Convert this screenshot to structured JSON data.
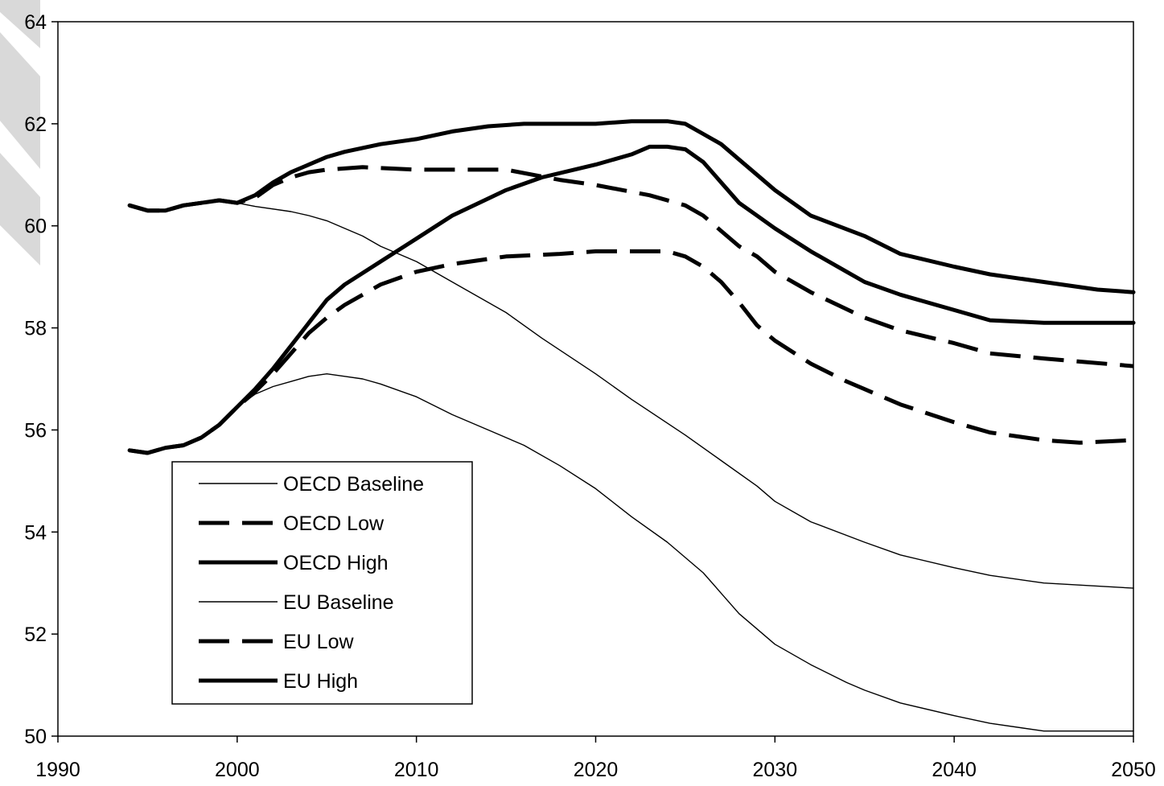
{
  "chart_data": {
    "type": "line",
    "title": "",
    "xlabel": "",
    "ylabel": "",
    "xlim": [
      1990,
      2050
    ],
    "ylim": [
      50,
      64
    ],
    "x_ticks": [
      "1990",
      "2000",
      "2010",
      "2020",
      "2030",
      "2040",
      "2050"
    ],
    "y_ticks": [
      "50",
      "52",
      "54",
      "56",
      "58",
      "60",
      "62",
      "64"
    ],
    "grid": false,
    "legend_position": "bottom-left",
    "series": [
      {
        "name": "OECD Baseline",
        "style": "thin",
        "points": [
          [
            1994,
            60.4
          ],
          [
            1995,
            60.3
          ],
          [
            1996,
            60.3
          ],
          [
            1997,
            60.4
          ],
          [
            1998,
            60.45
          ],
          [
            1999,
            60.5
          ],
          [
            2000,
            60.45
          ],
          [
            2001,
            60.38
          ],
          [
            2003,
            60.28
          ],
          [
            2004,
            60.2
          ],
          [
            2005,
            60.1
          ],
          [
            2006,
            59.95
          ],
          [
            2007,
            59.8
          ],
          [
            2008,
            59.6
          ],
          [
            2010,
            59.3
          ],
          [
            2012,
            58.9
          ],
          [
            2015,
            58.3
          ],
          [
            2017,
            57.8
          ],
          [
            2020,
            57.1
          ],
          [
            2022,
            56.6
          ],
          [
            2025,
            55.9
          ],
          [
            2027,
            55.4
          ],
          [
            2029,
            54.9
          ],
          [
            2030,
            54.6
          ],
          [
            2032,
            54.2
          ],
          [
            2035,
            53.8
          ],
          [
            2037,
            53.55
          ],
          [
            2040,
            53.3
          ],
          [
            2042,
            53.15
          ],
          [
            2045,
            53.0
          ],
          [
            2050,
            52.9
          ]
        ]
      },
      {
        "name": "OECD Low",
        "style": "dash",
        "points": [
          [
            1994,
            60.4
          ],
          [
            1995,
            60.3
          ],
          [
            1996,
            60.3
          ],
          [
            1997,
            60.4
          ],
          [
            1998,
            60.45
          ],
          [
            1999,
            60.5
          ],
          [
            2000,
            60.45
          ],
          [
            2001,
            60.55
          ],
          [
            2002,
            60.8
          ],
          [
            2003,
            60.95
          ],
          [
            2004,
            61.05
          ],
          [
            2005,
            61.1
          ],
          [
            2007,
            61.15
          ],
          [
            2010,
            61.1
          ],
          [
            2013,
            61.1
          ],
          [
            2015,
            61.1
          ],
          [
            2018,
            60.9
          ],
          [
            2020,
            60.8
          ],
          [
            2023,
            60.6
          ],
          [
            2025,
            60.4
          ],
          [
            2026,
            60.2
          ],
          [
            2027,
            59.9
          ],
          [
            2028,
            59.6
          ],
          [
            2029,
            59.4
          ],
          [
            2030,
            59.1
          ],
          [
            2032,
            58.7
          ],
          [
            2035,
            58.2
          ],
          [
            2037,
            57.95
          ],
          [
            2040,
            57.7
          ],
          [
            2042,
            57.5
          ],
          [
            2045,
            57.4
          ],
          [
            2050,
            57.25
          ]
        ]
      },
      {
        "name": "OECD High",
        "style": "thick",
        "points": [
          [
            1994,
            60.4
          ],
          [
            1995,
            60.3
          ],
          [
            1996,
            60.3
          ],
          [
            1997,
            60.4
          ],
          [
            1998,
            60.45
          ],
          [
            1999,
            60.5
          ],
          [
            2000,
            60.45
          ],
          [
            2001,
            60.6
          ],
          [
            2002,
            60.85
          ],
          [
            2003,
            61.05
          ],
          [
            2004,
            61.2
          ],
          [
            2005,
            61.35
          ],
          [
            2006,
            61.45
          ],
          [
            2008,
            61.6
          ],
          [
            2010,
            61.7
          ],
          [
            2012,
            61.85
          ],
          [
            2014,
            61.95
          ],
          [
            2016,
            62.0
          ],
          [
            2020,
            62.0
          ],
          [
            2022,
            62.05
          ],
          [
            2024,
            62.05
          ],
          [
            2025,
            62.0
          ],
          [
            2026,
            61.8
          ],
          [
            2027,
            61.6
          ],
          [
            2028,
            61.3
          ],
          [
            2029,
            61.0
          ],
          [
            2030,
            60.7
          ],
          [
            2032,
            60.2
          ],
          [
            2035,
            59.8
          ],
          [
            2037,
            59.45
          ],
          [
            2040,
            59.2
          ],
          [
            2042,
            59.05
          ],
          [
            2045,
            58.9
          ],
          [
            2048,
            58.75
          ],
          [
            2050,
            58.7
          ]
        ]
      },
      {
        "name": "EU Baseline",
        "style": "thin",
        "points": [
          [
            1994,
            55.6
          ],
          [
            1995,
            55.55
          ],
          [
            1996,
            55.65
          ],
          [
            1997,
            55.7
          ],
          [
            1998,
            55.85
          ],
          [
            1999,
            56.1
          ],
          [
            2000,
            56.45
          ],
          [
            2001,
            56.7
          ],
          [
            2002,
            56.85
          ],
          [
            2003,
            56.95
          ],
          [
            2004,
            57.05
          ],
          [
            2005,
            57.1
          ],
          [
            2006,
            57.05
          ],
          [
            2007,
            57.0
          ],
          [
            2008,
            56.9
          ],
          [
            2010,
            56.65
          ],
          [
            2012,
            56.3
          ],
          [
            2014,
            56.0
          ],
          [
            2016,
            55.7
          ],
          [
            2018,
            55.3
          ],
          [
            2020,
            54.85
          ],
          [
            2022,
            54.3
          ],
          [
            2024,
            53.8
          ],
          [
            2025,
            53.5
          ],
          [
            2026,
            53.2
          ],
          [
            2027,
            52.8
          ],
          [
            2028,
            52.4
          ],
          [
            2029,
            52.1
          ],
          [
            2030,
            51.8
          ],
          [
            2032,
            51.4
          ],
          [
            2034,
            51.05
          ],
          [
            2035,
            50.9
          ],
          [
            2037,
            50.65
          ],
          [
            2040,
            50.4
          ],
          [
            2042,
            50.25
          ],
          [
            2045,
            50.1
          ],
          [
            2050,
            50.1
          ]
        ]
      },
      {
        "name": "EU Low",
        "style": "dash",
        "points": [
          [
            1994,
            55.6
          ],
          [
            1995,
            55.55
          ],
          [
            1996,
            55.65
          ],
          [
            1997,
            55.7
          ],
          [
            1998,
            55.85
          ],
          [
            1999,
            56.1
          ],
          [
            2000,
            56.45
          ],
          [
            2001,
            56.75
          ],
          [
            2002,
            57.1
          ],
          [
            2003,
            57.5
          ],
          [
            2004,
            57.9
          ],
          [
            2005,
            58.2
          ],
          [
            2006,
            58.45
          ],
          [
            2008,
            58.85
          ],
          [
            2010,
            59.1
          ],
          [
            2012,
            59.25
          ],
          [
            2015,
            59.4
          ],
          [
            2018,
            59.45
          ],
          [
            2020,
            59.5
          ],
          [
            2022,
            59.5
          ],
          [
            2024,
            59.5
          ],
          [
            2025,
            59.4
          ],
          [
            2026,
            59.2
          ],
          [
            2027,
            58.9
          ],
          [
            2028,
            58.5
          ],
          [
            2029,
            58.05
          ],
          [
            2030,
            57.75
          ],
          [
            2032,
            57.3
          ],
          [
            2034,
            56.95
          ],
          [
            2035,
            56.8
          ],
          [
            2037,
            56.5
          ],
          [
            2040,
            56.15
          ],
          [
            2042,
            55.95
          ],
          [
            2045,
            55.8
          ],
          [
            2047,
            55.75
          ],
          [
            2050,
            55.8
          ]
        ]
      },
      {
        "name": "EU High",
        "style": "thick",
        "points": [
          [
            1994,
            55.6
          ],
          [
            1995,
            55.55
          ],
          [
            1996,
            55.65
          ],
          [
            1997,
            55.7
          ],
          [
            1998,
            55.85
          ],
          [
            1999,
            56.1
          ],
          [
            2000,
            56.45
          ],
          [
            2001,
            56.8
          ],
          [
            2002,
            57.2
          ],
          [
            2003,
            57.65
          ],
          [
            2004,
            58.1
          ],
          [
            2005,
            58.55
          ],
          [
            2006,
            58.85
          ],
          [
            2008,
            59.3
          ],
          [
            2010,
            59.75
          ],
          [
            2012,
            60.2
          ],
          [
            2015,
            60.7
          ],
          [
            2017,
            60.95
          ],
          [
            2020,
            61.2
          ],
          [
            2022,
            61.4
          ],
          [
            2023,
            61.55
          ],
          [
            2024,
            61.55
          ],
          [
            2025,
            61.5
          ],
          [
            2026,
            61.25
          ],
          [
            2027,
            60.85
          ],
          [
            2028,
            60.45
          ],
          [
            2029,
            60.2
          ],
          [
            2030,
            59.95
          ],
          [
            2032,
            59.5
          ],
          [
            2034,
            59.1
          ],
          [
            2035,
            58.9
          ],
          [
            2037,
            58.65
          ],
          [
            2040,
            58.35
          ],
          [
            2042,
            58.15
          ],
          [
            2045,
            58.1
          ],
          [
            2050,
            58.1
          ]
        ]
      }
    ]
  }
}
